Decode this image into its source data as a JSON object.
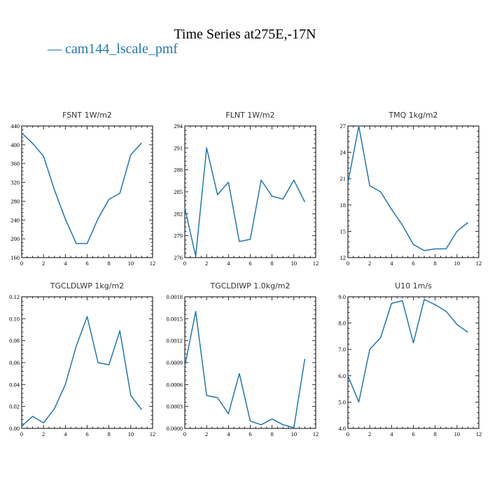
{
  "figure": {
    "title": "Time Series at275E,-17N",
    "legend_label": "— cam144_lscale_pmf",
    "series_color": "#1f77b4"
  },
  "chart_data": [
    {
      "type": "line",
      "title": "FSNT   1W/m2",
      "series_name": "cam144_lscale_pmf",
      "x": [
        0,
        1,
        2,
        3,
        4,
        5,
        6,
        7,
        8,
        9,
        10,
        11
      ],
      "y": [
        425,
        403,
        376,
        304,
        242,
        190,
        190,
        243,
        284,
        297,
        379,
        404
      ],
      "xlim": [
        0,
        12
      ],
      "ylim": [
        160,
        440
      ],
      "xticks": [
        0,
        2,
        4,
        6,
        8,
        10,
        12
      ],
      "xtick_labels": [
        "0",
        "2",
        "4",
        "6",
        "8",
        "10",
        "12"
      ],
      "yticks": [
        160,
        200,
        240,
        280,
        320,
        360,
        400,
        440
      ],
      "ytick_labels": [
        "160",
        "200",
        "240",
        "280",
        "320",
        "360",
        "400",
        "440"
      ]
    },
    {
      "type": "line",
      "title": "FLNT   1W/m2",
      "series_name": "cam144_lscale_pmf",
      "x": [
        0,
        1,
        2,
        3,
        4,
        5,
        6,
        7,
        8,
        9,
        10,
        11
      ],
      "y": [
        282.8,
        276.2,
        291.0,
        284.6,
        286.3,
        278.2,
        278.5,
        286.6,
        284.4,
        284.0,
        286.6,
        283.6
      ],
      "xlim": [
        0,
        12
      ],
      "ylim": [
        276,
        294
      ],
      "xticks": [
        0,
        2,
        4,
        6,
        8,
        10,
        12
      ],
      "xtick_labels": [
        "0",
        "2",
        "4",
        "6",
        "8",
        "10",
        "12"
      ],
      "yticks": [
        276,
        279,
        282,
        285,
        288,
        291,
        294
      ],
      "ytick_labels": [
        "276",
        "279",
        "282",
        "285",
        "288",
        "291",
        "294"
      ]
    },
    {
      "type": "line",
      "title": "TMQ   1kg/m2",
      "series_name": "cam144_lscale_pmf",
      "x": [
        0,
        1,
        2,
        3,
        4,
        5,
        6,
        7,
        8,
        9,
        10,
        11
      ],
      "y": [
        20.5,
        27.0,
        20.2,
        19.5,
        17.5,
        15.7,
        13.5,
        12.8,
        13.0,
        13.0,
        15.0,
        16.0
      ],
      "xlim": [
        0,
        12
      ],
      "ylim": [
        12,
        27
      ],
      "xticks": [
        0,
        2,
        4,
        6,
        8,
        10,
        12
      ],
      "xtick_labels": [
        "0",
        "2",
        "4",
        "6",
        "8",
        "10",
        "12"
      ],
      "yticks": [
        12,
        15,
        18,
        21,
        24,
        27
      ],
      "ytick_labels": [
        "12",
        "15",
        "18",
        "21",
        "24",
        "27"
      ]
    },
    {
      "type": "line",
      "title": "TGCLDLWP   1kg/m2",
      "series_name": "cam144_lscale_pmf",
      "x": [
        0,
        1,
        2,
        3,
        4,
        5,
        6,
        7,
        8,
        9,
        10,
        11
      ],
      "y": [
        0.002,
        0.011,
        0.005,
        0.018,
        0.04,
        0.075,
        0.102,
        0.06,
        0.058,
        0.089,
        0.03,
        0.017
      ],
      "xlim": [
        0,
        12
      ],
      "ylim": [
        0,
        0.12
      ],
      "xticks": [
        0,
        2,
        4,
        6,
        8,
        10,
        12
      ],
      "xtick_labels": [
        "0",
        "2",
        "4",
        "6",
        "8",
        "10",
        "12"
      ],
      "yticks": [
        0,
        0.02,
        0.04,
        0.06,
        0.08,
        0.1,
        0.12
      ],
      "ytick_labels": [
        "0.00",
        "0.02",
        "0.04",
        "0.06",
        "0.08",
        "0.10",
        "0.12"
      ]
    },
    {
      "type": "line",
      "title": "TGCLDIWP   1.0kg/m2",
      "series_name": "cam144_lscale_pmf",
      "x": [
        0,
        1,
        2,
        3,
        4,
        5,
        6,
        7,
        8,
        9,
        10,
        11
      ],
      "y": [
        0.00085,
        0.0016,
        0.00045,
        0.00042,
        0.0002,
        0.00075,
        0.0001,
        5e-05,
        0.00013,
        5e-05,
        1e-05,
        0.00095
      ],
      "xlim": [
        0,
        12
      ],
      "ylim": [
        0,
        0.0018
      ],
      "xticks": [
        0,
        2,
        4,
        6,
        8,
        10,
        12
      ],
      "xtick_labels": [
        "0",
        "2",
        "4",
        "6",
        "8",
        "10",
        "12"
      ],
      "yticks": [
        0,
        0.0003,
        0.0006,
        0.0009,
        0.0012,
        0.0015,
        0.0018
      ],
      "ytick_labels": [
        "0.0000",
        "0.0003",
        "0.0006",
        "0.0009",
        "0.0012",
        "0.0015",
        "0.0018"
      ]
    },
    {
      "type": "line",
      "title": "U10   1m/s",
      "series_name": "cam144_lscale_pmf",
      "x": [
        0,
        1,
        2,
        3,
        4,
        5,
        6,
        7,
        8,
        9,
        10,
        11
      ],
      "y": [
        6.0,
        5.0,
        7.0,
        7.45,
        8.75,
        8.85,
        7.25,
        8.9,
        8.7,
        8.45,
        7.95,
        7.65
      ],
      "xlim": [
        0,
        12
      ],
      "ylim": [
        4,
        9
      ],
      "xticks": [
        0,
        2,
        4,
        6,
        8,
        10,
        12
      ],
      "xtick_labels": [
        "0",
        "2",
        "4",
        "6",
        "8",
        "10",
        "12"
      ],
      "yticks": [
        4,
        5,
        6,
        7,
        8,
        9
      ],
      "ytick_labels": [
        "4.0",
        "5.0",
        "6.0",
        "7.0",
        "8.0",
        "9.0"
      ]
    }
  ]
}
